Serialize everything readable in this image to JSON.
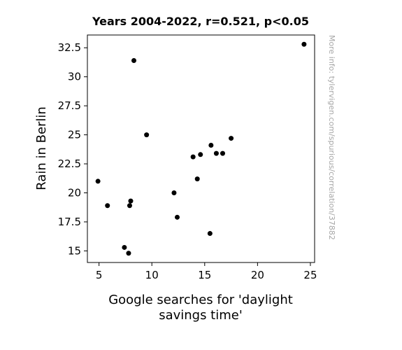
{
  "chart_data": {
    "type": "scatter",
    "title": "Years 2004-2022, r=0.521, p<0.05",
    "xlabel_lines": [
      "Google searches for 'daylight",
      "savings time'"
    ],
    "ylabel": "Rain in Berlin",
    "watermark": "More info: tylervigen.com/spurious/correlation/37882",
    "xlim": [
      3.9,
      25.4
    ],
    "ylim": [
      14.0,
      33.6
    ],
    "x_ticks": [
      5,
      10,
      15,
      20,
      25
    ],
    "x_tick_labels": [
      "5",
      "10",
      "15",
      "20",
      "25"
    ],
    "y_ticks": [
      15,
      17.5,
      20,
      22.5,
      25,
      27.5,
      30,
      32.5
    ],
    "y_tick_labels": [
      "15",
      "17.5",
      "20",
      "22.5",
      "25",
      "27.5",
      "30",
      "32.5"
    ],
    "grid": false,
    "marker_color": "#000000",
    "points": [
      {
        "x": 4.9,
        "y": 21.0
      },
      {
        "x": 5.8,
        "y": 18.9
      },
      {
        "x": 7.4,
        "y": 15.3
      },
      {
        "x": 7.8,
        "y": 14.8
      },
      {
        "x": 7.9,
        "y": 18.9
      },
      {
        "x": 8.0,
        "y": 19.3
      },
      {
        "x": 8.3,
        "y": 31.4
      },
      {
        "x": 9.5,
        "y": 25.0
      },
      {
        "x": 12.1,
        "y": 20.0
      },
      {
        "x": 12.4,
        "y": 17.9
      },
      {
        "x": 13.9,
        "y": 23.1
      },
      {
        "x": 14.3,
        "y": 21.2
      },
      {
        "x": 14.6,
        "y": 23.3
      },
      {
        "x": 15.5,
        "y": 16.5
      },
      {
        "x": 15.6,
        "y": 24.1
      },
      {
        "x": 16.1,
        "y": 23.4
      },
      {
        "x": 16.7,
        "y": 23.4
      },
      {
        "x": 17.5,
        "y": 24.7
      },
      {
        "x": 24.4,
        "y": 32.8
      }
    ]
  }
}
